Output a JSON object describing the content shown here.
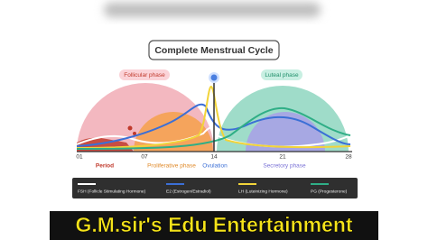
{
  "title": "Complete Menstrual Cycle",
  "phases": {
    "follicular": "Follicular phase",
    "luteal": "Luteal phase"
  },
  "days": [
    "01",
    "07",
    "14",
    "21",
    "28"
  ],
  "stages": [
    "Period",
    "Proliferative phase",
    "Ovulation",
    "Secretory phase"
  ],
  "legend": [
    "FSH (Follicle Stimulating Hormone)",
    "E2 (Estrogen/Estradiol)",
    "LH (Luteinizing Hormone)",
    "PG (Progesterone)"
  ],
  "banner": "G.M.sir's Edu Entertainment"
}
